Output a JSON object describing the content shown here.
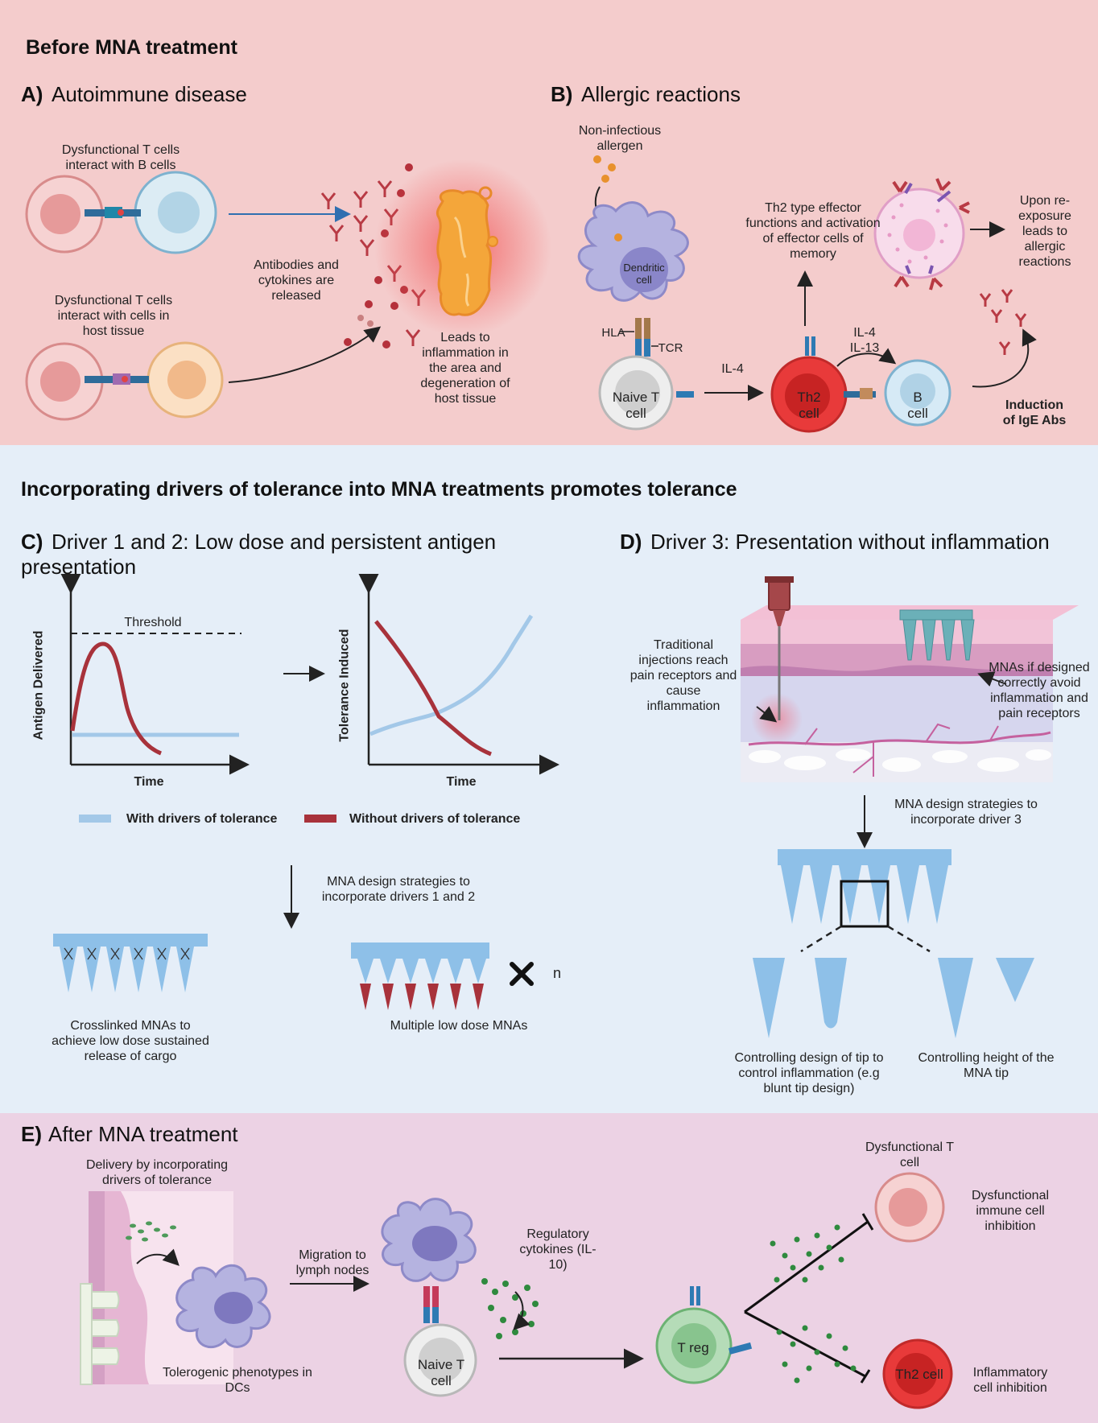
{
  "section_before": {
    "title": "Before MNA treatment",
    "panel_a": {
      "letter": "A)",
      "title": "Autoimmune disease",
      "tcell_bcell_label": "Dysfunctional T cells interact with B cells",
      "tcell_host_label": "Dysfunctional T cells interact with cells in host tissue",
      "antibodies_label": "Antibodies and cytokines are released",
      "inflammation_label": "Leads to inflammation in the area and degeneration of host tissue"
    },
    "panel_b": {
      "letter": "B)",
      "title": "Allergic reactions",
      "allergen_label": "Non-infectious allergen",
      "dendritic_label": "Dendritic cell",
      "hla_label": "HLA",
      "tcr_label": "TCR",
      "naive_label": "Naive T cell",
      "il4_label": "IL-4",
      "th2_label": "Th2 cell",
      "il4_il13_label": "IL-4 IL-13",
      "bcell_label": "B cell",
      "th2_effector_label": "Th2 type effector functions and activation of effector cells of memory",
      "reexposure_label": "Upon re-exposure leads to allergic reactions",
      "ige_label": "Induction of IgE Abs"
    }
  },
  "section_mid": {
    "title": "Incorporating drivers of tolerance into MNA treatments promotes tolerance",
    "panel_c": {
      "letter": "C)",
      "title": "Driver 1 and 2: Low dose and persistent antigen presentation",
      "chart1_ylabel": "Antigen Delivered",
      "chart1_xlabel": "Time",
      "threshold_label": "Threshold",
      "chart2_ylabel": "Tolerance Induced",
      "chart2_xlabel": "Time",
      "legend_with": "With drivers of tolerance",
      "legend_without": "Without drivers of tolerance",
      "design_label": "MNA design strategies to incorporate drivers 1 and 2",
      "crosslinked_label": "Crosslinked MNAs to achieve low dose sustained release of cargo",
      "multiple_label": "Multiple low dose MNAs",
      "n_label": "n"
    },
    "panel_d": {
      "letter": "D)",
      "title": "Driver 3: Presentation without inflammation",
      "injection_label": "Traditional injections reach pain receptors and cause inflammation",
      "mna_avoid_label": "MNAs if designed correctly avoid inflammation and pain receptors",
      "design_label": "MNA design strategies to incorporate driver 3",
      "tip_design_label": "Controlling design of tip to control inflammation (e.g blunt tip design)",
      "tip_height_label": "Controlling height of the MNA tip"
    }
  },
  "section_after": {
    "panel_e": {
      "letter": "E)",
      "title": "After MNA treatment",
      "delivery_label": "Delivery by incorporating drivers of tolerance",
      "tolerogenic_label": "Tolerogenic phenotypes in DCs",
      "migration_label": "Migration to lymph nodes",
      "regulatory_label": "Regulatory cytokines (IL-10)",
      "naive_label": "Naive T cell",
      "treg_label": "T reg",
      "dysf_tcell_label": "Dysfunctional T cell",
      "dysf_inhibition_label": "Dysfunctional immune cell inhibition",
      "th2_label": "Th2 cell",
      "inflammatory_inhibition_label": "Inflammatory cell inhibition"
    }
  },
  "colors": {
    "top_bg": "#f4cccc",
    "mid_bg": "#e5eef8",
    "bottom_bg": "#ecd2e4",
    "with_drivers": "#a3c8e8",
    "without_drivers": "#a8323b",
    "mna": "#8ec0e8"
  },
  "chart_data": [
    {
      "type": "line",
      "title": "",
      "xlabel": "Time",
      "ylabel": "Antigen Delivered",
      "annotations": [
        "Threshold"
      ],
      "series": [
        {
          "name": "With drivers of tolerance",
          "shape": "flat, low"
        },
        {
          "name": "Without drivers of tolerance",
          "shape": "sharp peak below threshold, then decay"
        }
      ]
    },
    {
      "type": "line",
      "title": "",
      "xlabel": "Time",
      "ylabel": "Tolerance Induced",
      "series": [
        {
          "name": "With drivers of tolerance",
          "shape": "increasing"
        },
        {
          "name": "Without drivers of tolerance",
          "shape": "decreasing"
        }
      ]
    }
  ]
}
